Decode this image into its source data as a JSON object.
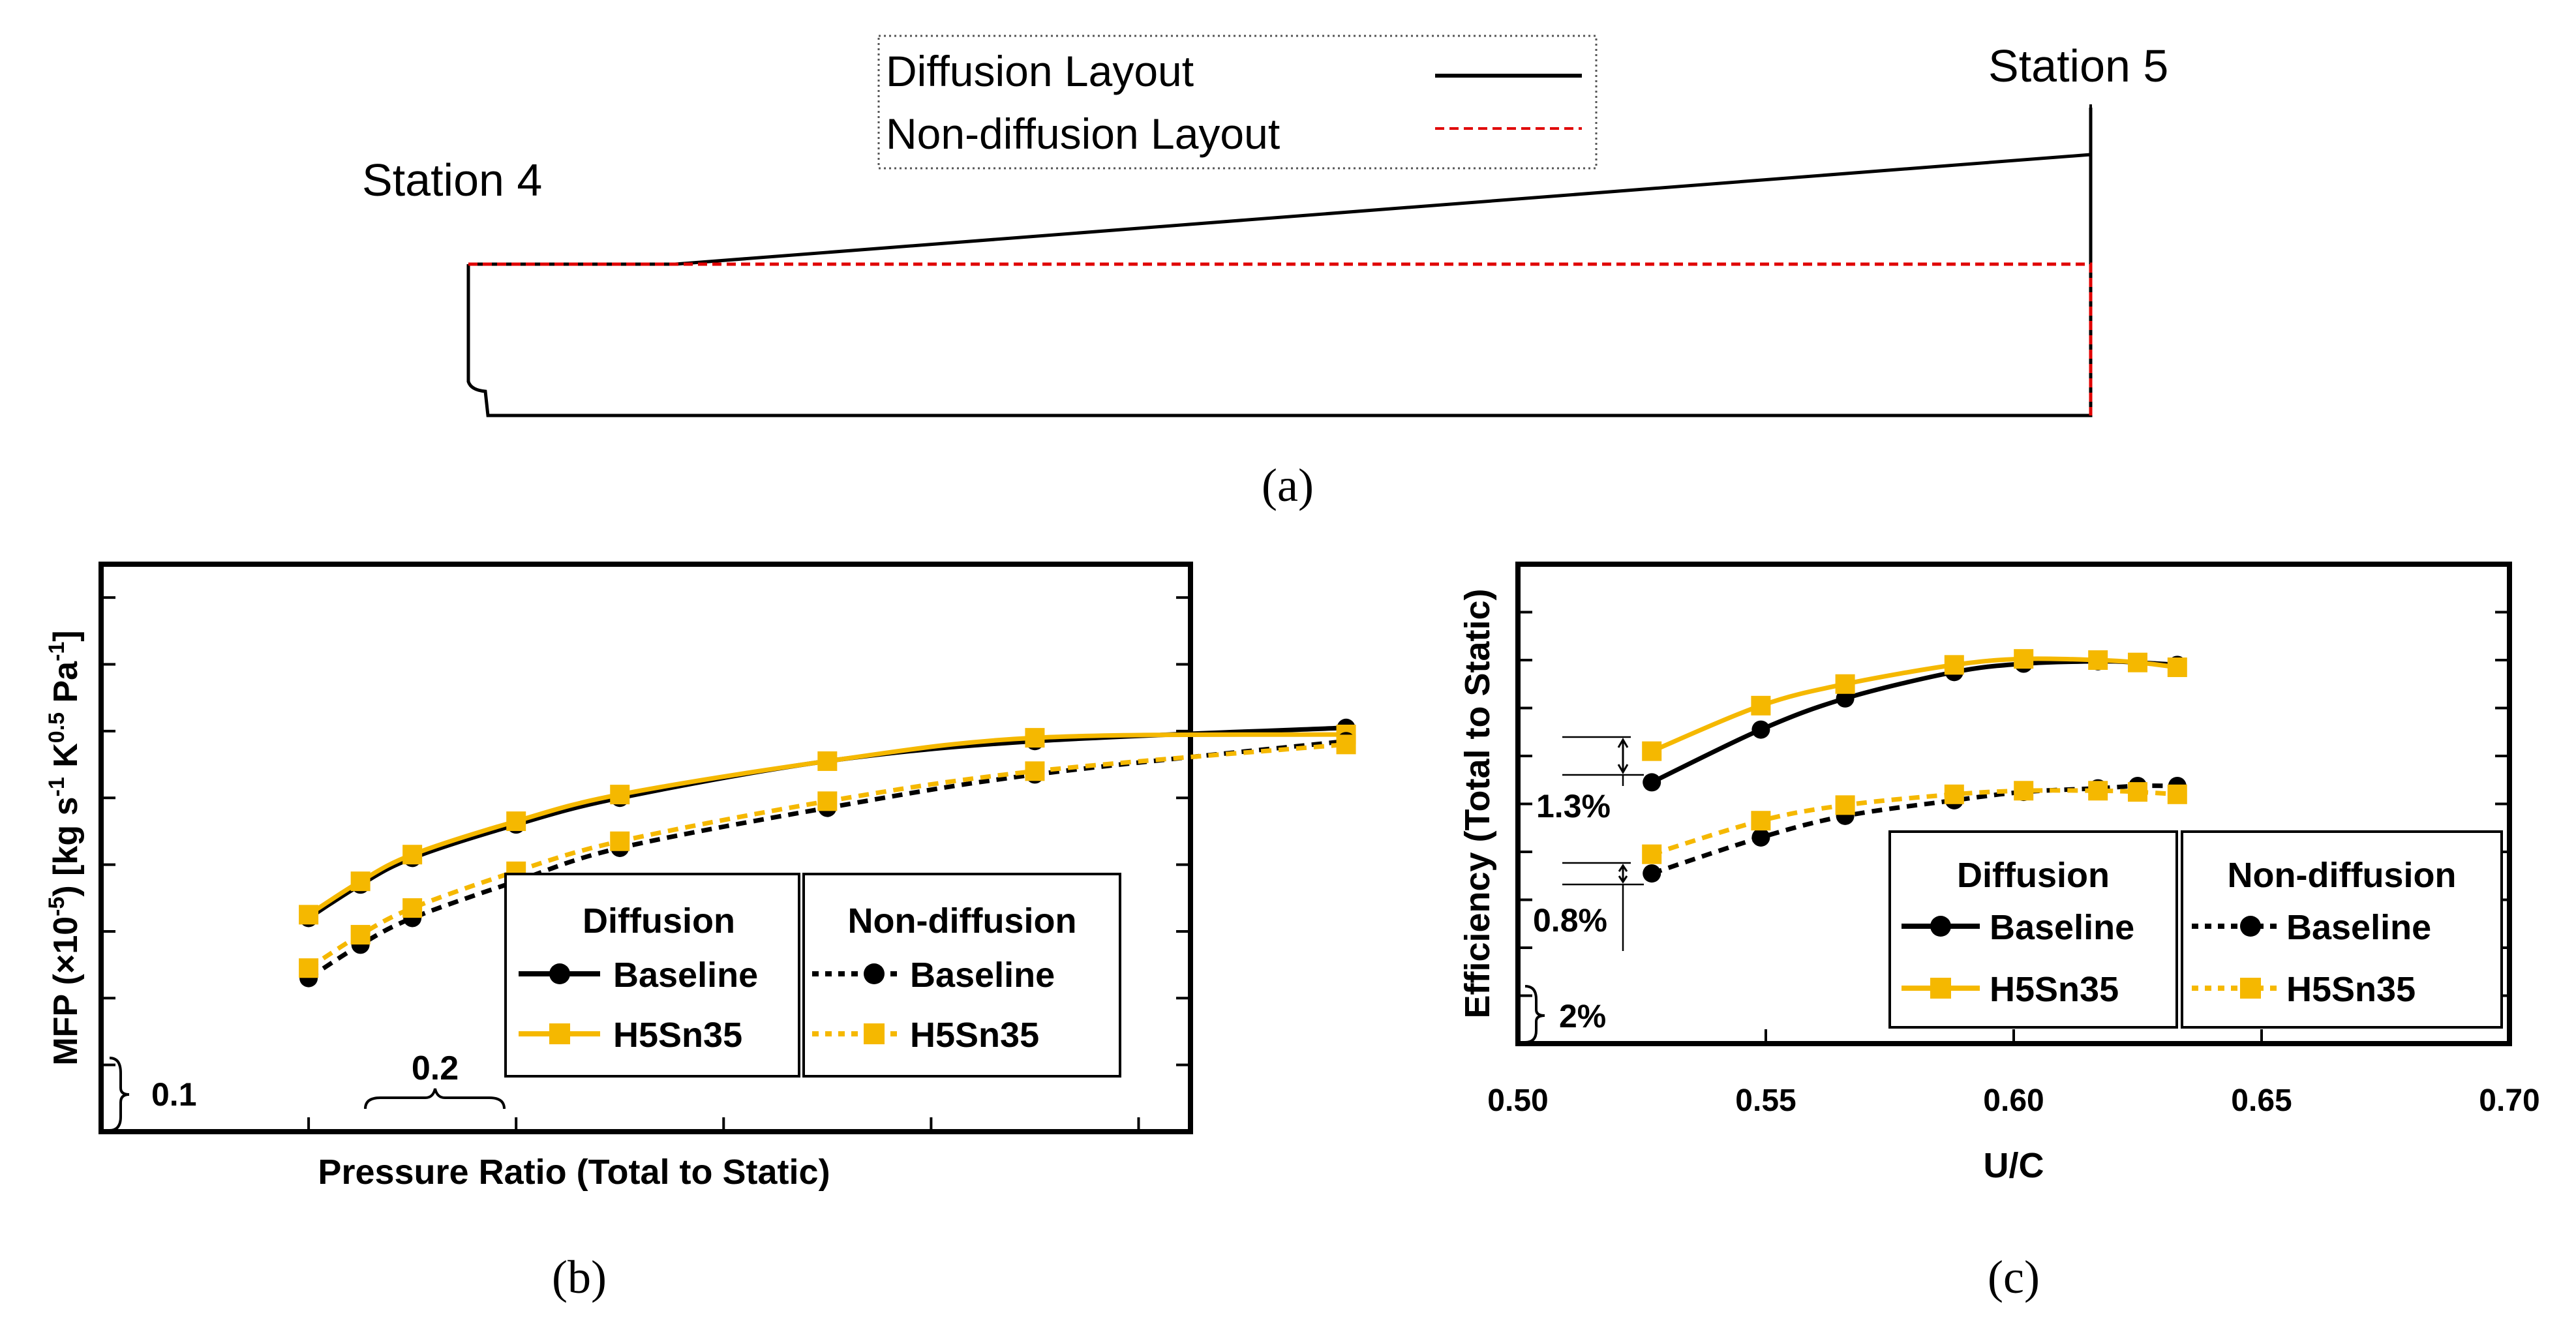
{
  "colors": {
    "baseline": "#000000",
    "h5sn35": "#F5B800",
    "layout_nondiff": "#E00000",
    "axis": "#000000"
  },
  "panel_a": {
    "caption": "(a)",
    "station4_label": "Station 4",
    "station5_label": "Station 5",
    "legend_diffusion": "Diffusion Layout",
    "legend_nondiffusion": "Non-diffusion Layout"
  },
  "panel_b": {
    "caption": "(b)",
    "ylabel_prefix": "MFP (×10",
    "ylabel_exp1": "-5",
    "ylabel_mid1": ") [kg s",
    "ylabel_exp2": "-1",
    "ylabel_mid2": " K",
    "ylabel_exp3": "0.5",
    "ylabel_mid3": " Pa",
    "ylabel_exp4": "-1",
    "ylabel_suffix": "]",
    "xlabel": "Pressure Ratio (Total to Static)",
    "scale_y_label": "0.1",
    "scale_x_label": "0.2",
    "legend_group_diff": "Diffusion",
    "legend_group_nondiff": "Non-diffusion",
    "legend_baseline": "Baseline",
    "legend_h5sn35": "H5Sn35"
  },
  "panel_c": {
    "caption": "(c)",
    "ylabel": "Efficiency (Total to Static)",
    "xlabel": "U/C",
    "x_ticks": [
      "0.50",
      "0.55",
      "0.60",
      "0.65",
      "0.70"
    ],
    "scale_y_label": "2%",
    "annot_1": "1.3%",
    "annot_2": "0.8%",
    "legend_group_diff": "Diffusion",
    "legend_group_nondiff": "Non-diffusion",
    "legend_baseline": "Baseline",
    "legend_h5sn35": "H5Sn35"
  },
  "chart_data": [
    {
      "type": "line",
      "panel": "b",
      "title": "",
      "xlabel": "Pressure Ratio (Total to Static)",
      "ylabel": "MFP (×10^-5) [kg s^-1 K^0.5 Pa^-1]",
      "xlim": [
        1.2,
        2.25
      ],
      "ylim": [
        0.1,
        0.95
      ],
      "xtick_spacing": 0.2,
      "ytick_spacing": 0.1,
      "tick_labels_shown": false,
      "legend_placement": "bottom-right",
      "series": [
        {
          "name": "Diffusion Baseline",
          "style": "solid",
          "marker": "circle",
          "color": "black",
          "x": [
            1.4,
            1.45,
            1.5,
            1.6,
            1.7,
            1.9,
            2.1,
            2.4
          ],
          "y": [
            0.42,
            0.47,
            0.51,
            0.56,
            0.6,
            0.655,
            0.685,
            0.705
          ]
        },
        {
          "name": "Diffusion H5Sn35",
          "style": "solid",
          "marker": "square",
          "color": "gold",
          "x": [
            1.4,
            1.45,
            1.5,
            1.6,
            1.7,
            1.9,
            2.1,
            2.4
          ],
          "y": [
            0.425,
            0.475,
            0.515,
            0.565,
            0.605,
            0.655,
            0.69,
            0.695
          ]
        },
        {
          "name": "Non-diffusion Baseline",
          "style": "dashed",
          "marker": "circle",
          "color": "black",
          "x": [
            1.4,
            1.45,
            1.5,
            1.6,
            1.7,
            1.9,
            2.1,
            2.4
          ],
          "y": [
            0.33,
            0.38,
            0.42,
            0.475,
            0.525,
            0.585,
            0.635,
            0.685
          ]
        },
        {
          "name": "Non-diffusion H5Sn35",
          "style": "dashed",
          "marker": "square",
          "color": "gold",
          "x": [
            1.4,
            1.45,
            1.5,
            1.6,
            1.7,
            1.9,
            2.1,
            2.4
          ],
          "y": [
            0.345,
            0.395,
            0.435,
            0.49,
            0.535,
            0.595,
            0.64,
            0.68
          ]
        }
      ]
    },
    {
      "type": "line",
      "panel": "c",
      "title": "",
      "xlabel": "U/C",
      "ylabel": "Efficiency (Total to Static)",
      "xlim": [
        0.5,
        0.7
      ],
      "ylim": [
        0,
        0.2
      ],
      "ytick_spacing": 0.02,
      "ytick_labels_shown": false,
      "legend_placement": "bottom-right",
      "series": [
        {
          "name": "Diffusion Baseline",
          "style": "solid",
          "marker": "circle",
          "color": "black",
          "x": [
            0.527,
            0.549,
            0.566,
            0.588,
            0.602,
            0.617,
            0.625,
            0.633
          ],
          "y": [
            0.109,
            0.131,
            0.144,
            0.155,
            0.1585,
            0.1595,
            0.159,
            0.158
          ]
        },
        {
          "name": "Diffusion H5Sn35",
          "style": "solid",
          "marker": "square",
          "color": "gold",
          "x": [
            0.527,
            0.549,
            0.566,
            0.588,
            0.602,
            0.617,
            0.625,
            0.633
          ],
          "y": [
            0.122,
            0.141,
            0.15,
            0.158,
            0.1605,
            0.16,
            0.159,
            0.157
          ]
        },
        {
          "name": "Non-diffusion Baseline",
          "style": "dashed",
          "marker": "circle",
          "color": "black",
          "x": [
            0.527,
            0.549,
            0.566,
            0.588,
            0.602,
            0.617,
            0.625,
            0.633
          ],
          "y": [
            0.071,
            0.086,
            0.095,
            0.1015,
            0.105,
            0.1065,
            0.1075,
            0.1075
          ]
        },
        {
          "name": "Non-diffusion H5Sn35",
          "style": "dashed",
          "marker": "square",
          "color": "gold",
          "x": [
            0.527,
            0.549,
            0.566,
            0.588,
            0.602,
            0.617,
            0.625,
            0.633
          ],
          "y": [
            0.079,
            0.093,
            0.0995,
            0.104,
            0.1055,
            0.1055,
            0.105,
            0.104
          ]
        }
      ]
    }
  ]
}
